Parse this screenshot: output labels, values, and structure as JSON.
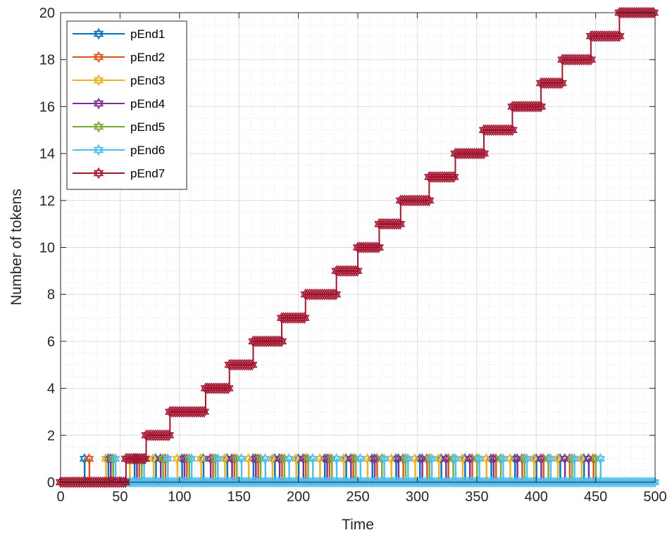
{
  "chart_data": {
    "type": "line",
    "title": "",
    "xlabel": "Time",
    "ylabel": "Number of tokens",
    "xlim": [
      0,
      500
    ],
    "ylim": [
      0,
      20
    ],
    "xticks": [
      "0",
      "50",
      "100",
      "150",
      "200",
      "250",
      "300",
      "350",
      "400",
      "450",
      "500"
    ],
    "yticks": [
      "0",
      "2",
      "4",
      "6",
      "8",
      "10",
      "12",
      "14",
      "16",
      "18",
      "20"
    ],
    "grid": "major and minor",
    "legend_position": "top-left",
    "series": [
      {
        "name": "pEnd1",
        "color": "#0072BD",
        "marker": "hexagram",
        "pulse_times": [
          20,
          40,
          62,
          80,
          102,
          120,
          140,
          162,
          180,
          200,
          222,
          240,
          262,
          282,
          302,
          320,
          340,
          362,
          382,
          400,
          420,
          440
        ]
      },
      {
        "name": "pEnd2",
        "color": "#D95319",
        "marker": "hexagram",
        "pulse_times": [
          24,
          44,
          66,
          88,
          106,
          128,
          146,
          166,
          186,
          206,
          226,
          246,
          266,
          288,
          308,
          326,
          346,
          366,
          388,
          406,
          428,
          448
        ]
      },
      {
        "name": "pEnd3",
        "color": "#EDB120",
        "marker": "hexagram",
        "pulse_times": [
          38,
          58,
          78,
          98,
          118,
          138,
          158,
          178,
          198,
          218,
          238,
          258,
          278,
          298,
          318,
          338,
          358,
          378,
          398,
          418,
          438
        ]
      },
      {
        "name": "pEnd4",
        "color": "#7E2F8E",
        "marker": "hexagram",
        "pulse_times": [
          42,
          64,
          84,
          104,
          126,
          144,
          164,
          184,
          204,
          224,
          244,
          264,
          284,
          304,
          324,
          344,
          364,
          384,
          404,
          424,
          444
        ]
      },
      {
        "name": "pEnd5",
        "color": "#77AC30",
        "marker": "hexagram",
        "pulse_times": [
          44,
          68,
          86,
          108,
          130,
          148,
          168,
          188,
          208,
          228,
          248,
          270,
          290,
          310,
          330,
          350,
          370,
          390,
          410,
          430,
          450
        ]
      },
      {
        "name": "pEnd6",
        "color": "#4DBEEE",
        "marker": "hexagram",
        "pulse_times": [
          46,
          70,
          90,
          110,
          132,
          152,
          172,
          192,
          212,
          232,
          252,
          272,
          292,
          312,
          332,
          352,
          372,
          392,
          412,
          432,
          454
        ]
      },
      {
        "name": "pEnd7",
        "color": "#A2142F",
        "marker": "hexagram",
        "x": [
          0,
          55,
          72,
          92,
          122,
          142,
          162,
          186,
          206,
          232,
          250,
          268,
          286,
          310,
          332,
          356,
          380,
          404,
          422,
          446,
          470,
          500
        ],
        "y": [
          0,
          1,
          2,
          3,
          4,
          5,
          6,
          7,
          8,
          9,
          10,
          11,
          12,
          13,
          14,
          15,
          16,
          17,
          18,
          19,
          20,
          20
        ]
      }
    ]
  }
}
